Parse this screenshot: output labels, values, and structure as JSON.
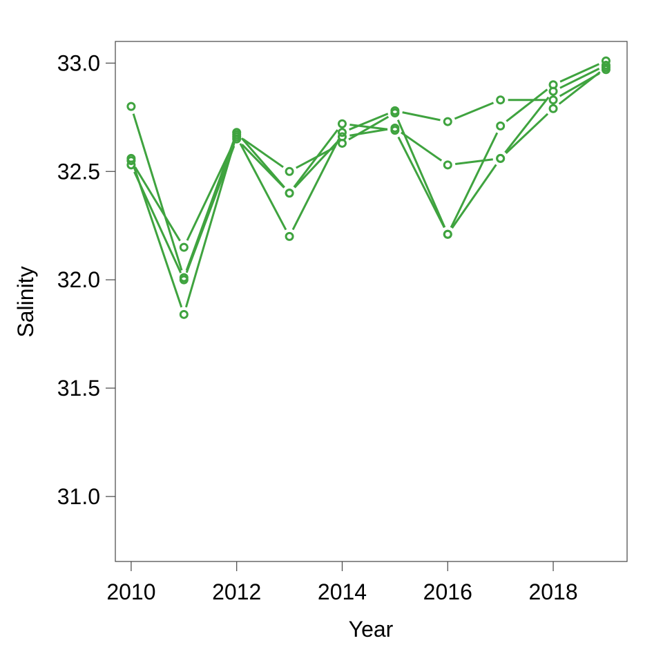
{
  "chart_data": {
    "type": "line",
    "xlabel": "Year",
    "ylabel": "Salinity",
    "xlim": [
      2009.7,
      2019.4
    ],
    "ylim": [
      30.7,
      33.1
    ],
    "x_ticks": [
      2010,
      2012,
      2014,
      2016,
      2018
    ],
    "y_ticks": [
      31.0,
      31.5,
      32.0,
      32.5,
      33.0
    ],
    "y_tick_labels": [
      "31.0",
      "31.5",
      "32.0",
      "32.5",
      "33.0"
    ],
    "x": [
      2010,
      2011,
      2012,
      2013,
      2014,
      2015,
      2016,
      2017,
      2018,
      2019
    ],
    "series": [
      {
        "values": [
          32.8,
          32.01,
          32.68,
          32.4,
          32.72,
          32.69,
          32.21,
          32.71,
          32.9,
          33.01
        ]
      },
      {
        "values": [
          32.56,
          31.84,
          32.67,
          32.5,
          32.63,
          32.77,
          32.21,
          32.56,
          32.87,
          32.99
        ]
      },
      {
        "values": [
          32.53,
          32.0,
          32.65,
          32.4,
          32.66,
          32.7,
          32.53,
          32.56,
          32.79,
          32.98
        ]
      },
      {
        "values": [
          32.55,
          32.15,
          32.66,
          32.2,
          32.68,
          32.78,
          32.73,
          32.83,
          32.83,
          32.97
        ]
      }
    ],
    "colors": {
      "series": "#3fa33f",
      "axis": "#444444",
      "text": "#000000"
    },
    "markers": "open-circle",
    "grid": false,
    "legend": "none"
  }
}
